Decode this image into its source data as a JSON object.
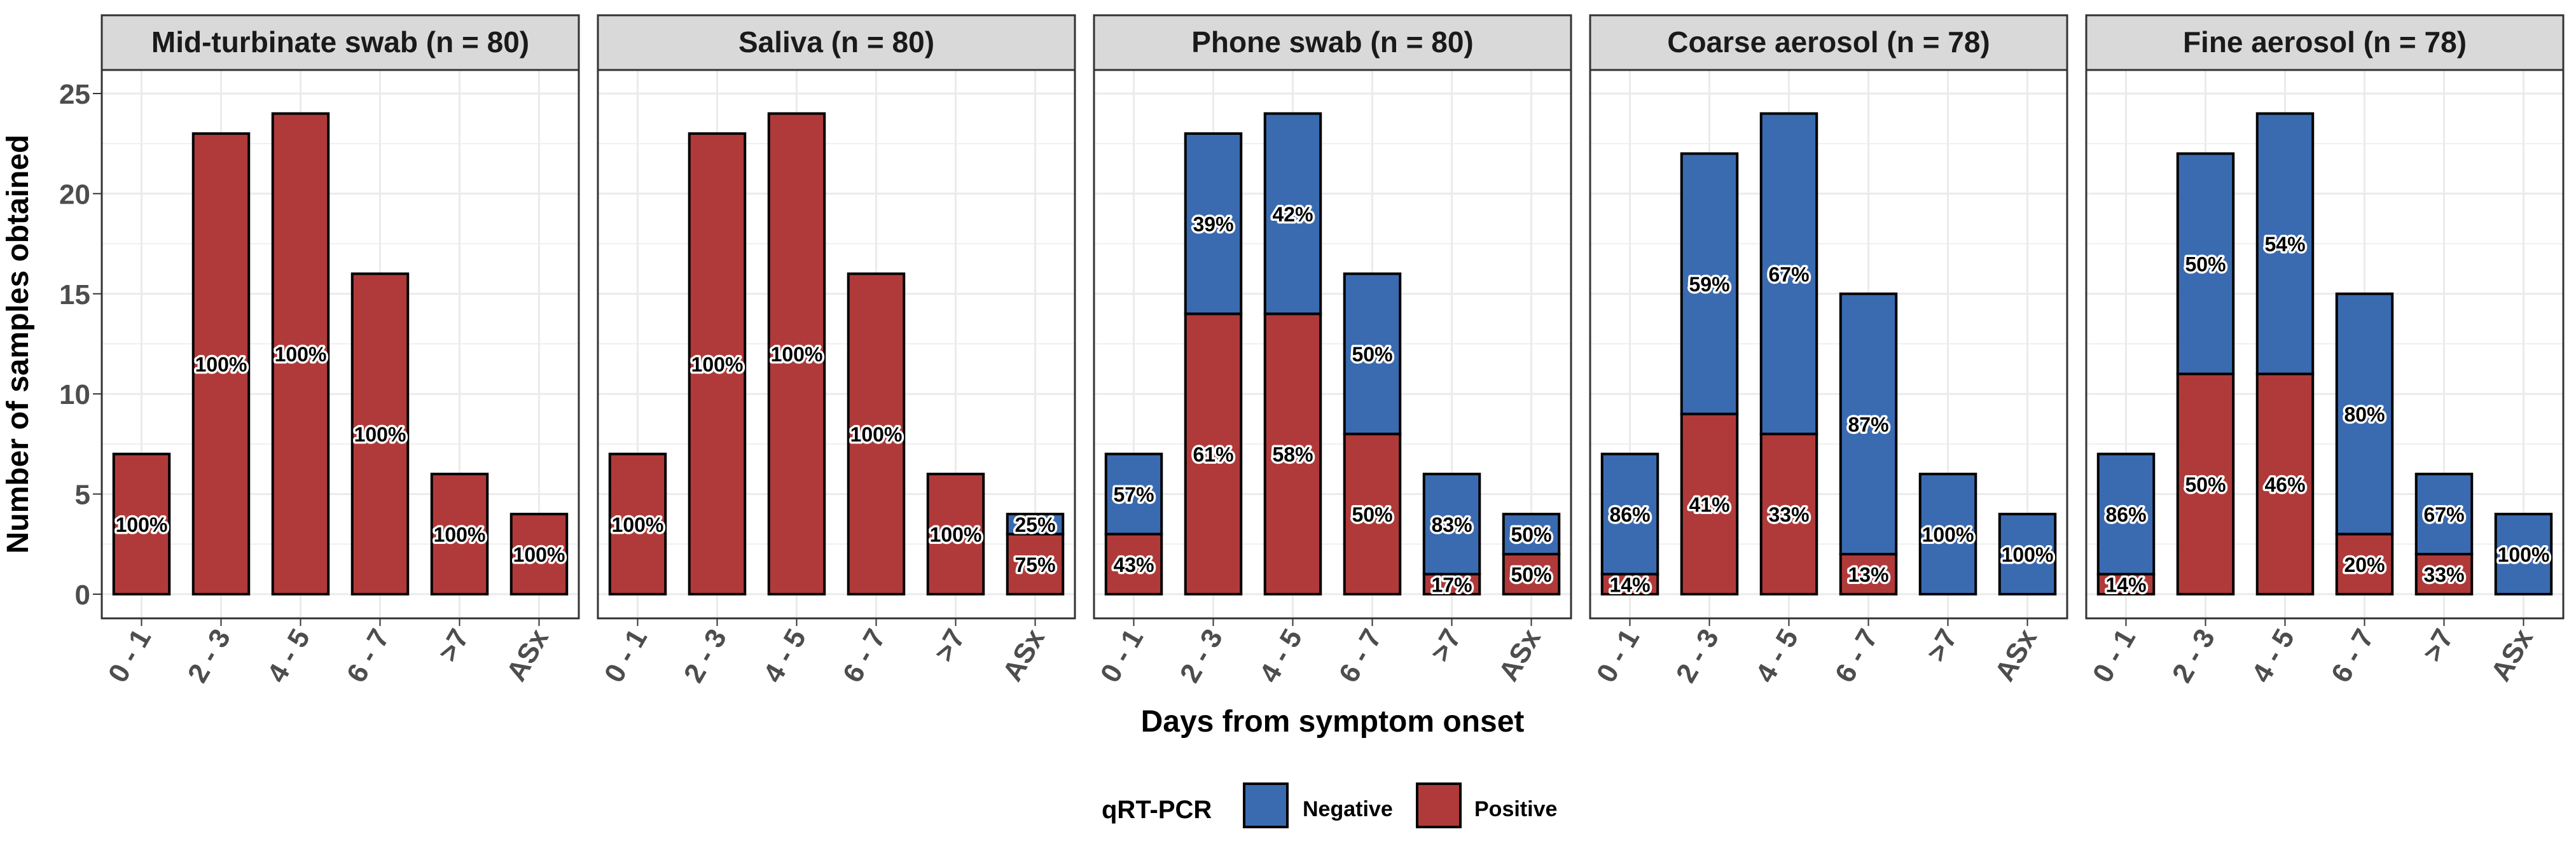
{
  "chart_data": {
    "type": "bar",
    "stacked": true,
    "xlabel": "Days from symptom onset",
    "ylabel": "Number of samples obtained",
    "ylim": [
      0,
      25
    ],
    "yticks": [
      0,
      5,
      10,
      15,
      20,
      25
    ],
    "categories": [
      "0 - 1",
      "2 - 3",
      "4 - 5",
      "6 - 7",
      ">7",
      "ASx"
    ],
    "legend": {
      "title": "qRT-PCR",
      "position": "bottom",
      "entries": [
        {
          "name": "Negative",
          "color": "#3a6bb0"
        },
        {
          "name": "Positive",
          "color": "#b03a3a"
        }
      ]
    },
    "grid": true,
    "panels": [
      {
        "title": "Mid-turbinate swab (n = 80)",
        "series": [
          {
            "name": "Positive",
            "values": [
              7,
              23,
              24,
              16,
              6,
              4
            ],
            "labels": [
              "100%",
              "100%",
              "100%",
              "100%",
              "100%",
              "100%"
            ]
          },
          {
            "name": "Negative",
            "values": [
              0,
              0,
              0,
              0,
              0,
              0
            ],
            "labels": [
              "",
              "",
              "",
              "",
              "",
              ""
            ]
          }
        ]
      },
      {
        "title": "Saliva (n = 80)",
        "series": [
          {
            "name": "Positive",
            "values": [
              7,
              23,
              24,
              16,
              6,
              3
            ],
            "labels": [
              "100%",
              "100%",
              "100%",
              "100%",
              "100%",
              "75%"
            ]
          },
          {
            "name": "Negative",
            "values": [
              0,
              0,
              0,
              0,
              0,
              1
            ],
            "labels": [
              "",
              "",
              "",
              "",
              "",
              "25%"
            ]
          }
        ]
      },
      {
        "title": "Phone swab (n = 80)",
        "series": [
          {
            "name": "Positive",
            "values": [
              3,
              14,
              14,
              8,
              1,
              2
            ],
            "labels": [
              "43%",
              "61%",
              "58%",
              "50%",
              "17%",
              "50%"
            ]
          },
          {
            "name": "Negative",
            "values": [
              4,
              9,
              10,
              8,
              5,
              2
            ],
            "labels": [
              "57%",
              "39%",
              "42%",
              "50%",
              "83%",
              "50%"
            ]
          }
        ]
      },
      {
        "title": "Coarse aerosol (n = 78)",
        "series": [
          {
            "name": "Positive",
            "values": [
              1,
              9,
              8,
              2,
              0,
              0
            ],
            "labels": [
              "14%",
              "41%",
              "33%",
              "13%",
              "",
              ""
            ]
          },
          {
            "name": "Negative",
            "values": [
              6,
              13,
              16,
              13,
              6,
              4
            ],
            "labels": [
              "86%",
              "59%",
              "67%",
              "87%",
              "100%",
              "100%"
            ]
          }
        ]
      },
      {
        "title": "Fine aerosol (n = 78)",
        "series": [
          {
            "name": "Positive",
            "values": [
              1,
              11,
              11,
              3,
              2,
              0
            ],
            "labels": [
              "14%",
              "50%",
              "46%",
              "20%",
              "33%",
              ""
            ]
          },
          {
            "name": "Negative",
            "values": [
              6,
              11,
              13,
              12,
              4,
              4
            ],
            "labels": [
              "86%",
              "50%",
              "54%",
              "80%",
              "67%",
              "100%"
            ]
          }
        ]
      }
    ]
  }
}
